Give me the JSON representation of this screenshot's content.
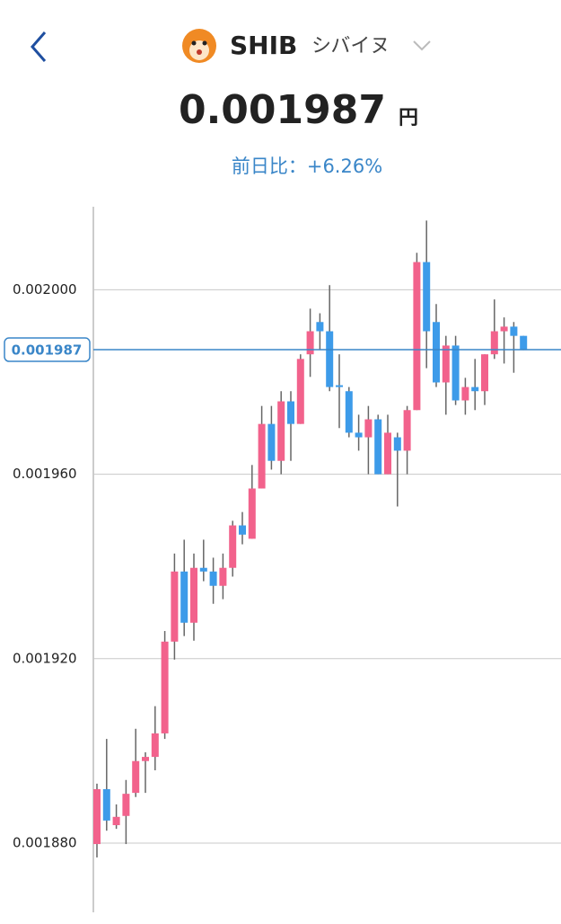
{
  "header": {
    "symbol": "SHIB",
    "name": "シバイヌ",
    "price": "0.001987",
    "unit": "円",
    "change": "前日比：+6.26%"
  },
  "chart_data": {
    "type": "candlestick",
    "ylim": [
      0.001865,
      0.002018
    ],
    "yticks": [
      {
        "value": 0.00188,
        "label": "0.001880"
      },
      {
        "value": 0.00192,
        "label": "0.001920"
      },
      {
        "value": 0.00196,
        "label": "0.001960"
      },
      {
        "value": 0.002,
        "label": "0.002000"
      }
    ],
    "grid": true,
    "up_color": "#f2628c",
    "down_color": "#3d9be9",
    "current_price": {
      "value": 0.001987,
      "label": "0.001987",
      "color": "#3a86c8"
    },
    "open": [
      0.0018798,
      0.0018917,
      0.0018839,
      0.0018859,
      0.0018909,
      0.0018978,
      0.0018987,
      0.0019038,
      0.0019237,
      0.0019389,
      0.0019278,
      0.0019397,
      0.0019389,
      0.0019358,
      0.0019397,
      0.0019489,
      0.001946,
      0.0019569,
      0.0019709,
      0.0019629,
      0.0019758,
      0.0019709,
      0.001986,
      0.001993,
      0.001991,
      0.0019793,
      0.001978,
      0.001969,
      0.001968,
      0.0019719,
      0.00196,
      0.001968,
      0.0019651,
      0.0019739,
      0.002006,
      0.001993,
      0.0019799,
      0.0019879,
      0.001976,
      0.0019789,
      0.001978,
      0.001986,
      0.001991,
      0.001992,
      0.00199
    ],
    "high": [
      0.0018929,
      0.0019026,
      0.0018884,
      0.0018937,
      0.0019048,
      0.0018997,
      0.0019097,
      0.001926,
      0.0019428,
      0.0019458,
      0.0019428,
      0.0019458,
      0.0019419,
      0.0019428,
      0.0019499,
      0.0019518,
      0.001962,
      0.0019748,
      0.0019748,
      0.001978,
      0.001978,
      0.001986,
      0.0019959,
      0.0019949,
      0.002001,
      0.001986,
      0.0019789,
      0.0019729,
      0.0019748,
      0.0019729,
      0.0019729,
      0.001969,
      0.0019748,
      0.002008,
      0.002015,
      0.0019969,
      0.00199,
      0.00199,
      0.0019809,
      0.001985,
      0.001986,
      0.0019979,
      0.001994,
      0.001993,
      0.00199
    ],
    "low": [
      0.0018769,
      0.0018827,
      0.0018831,
      0.0018798,
      0.00189,
      0.0018909,
      0.0018958,
      0.0019026,
      0.0019198,
      0.0019249,
      0.0019239,
      0.0019368,
      0.0019319,
      0.0019329,
      0.0019378,
      0.0019448,
      0.001946,
      0.0019569,
      0.001961,
      0.00196,
      0.0019629,
      0.0019709,
      0.0019811,
      0.0019869,
      0.001978,
      0.00197,
      0.001968,
      0.0019651,
      0.00196,
      0.00196,
      0.00196,
      0.001953,
      0.00196,
      0.0019739,
      0.001983,
      0.0019789,
      0.0019729,
      0.001975,
      0.0019729,
      0.0019739,
      0.001975,
      0.001985,
      0.001984,
      0.001982,
      0.0019869
    ],
    "close": [
      0.0018917,
      0.0018849,
      0.0018857,
      0.0018907,
      0.0018978,
      0.0018987,
      0.0019038,
      0.0019237,
      0.0019389,
      0.0019278,
      0.0019397,
      0.0019389,
      0.0019358,
      0.0019397,
      0.0019489,
      0.0019469,
      0.0019569,
      0.0019709,
      0.0019629,
      0.0019758,
      0.0019709,
      0.001985,
      0.001991,
      0.001991,
      0.0019789,
      0.0019789,
      0.001969,
      0.001968,
      0.0019719,
      0.00196,
      0.001969,
      0.0019651,
      0.0019739,
      0.002006,
      0.001991,
      0.0019799,
      0.0019879,
      0.001976,
      0.0019789,
      0.001978,
      0.001986,
      0.001991,
      0.001992,
      0.00199,
      0.0019869
    ]
  }
}
